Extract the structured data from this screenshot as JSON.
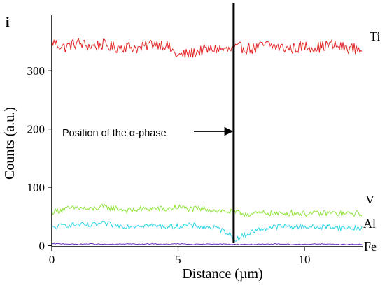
{
  "chart_data": {
    "type": "line",
    "panel_label": "i",
    "title": "",
    "xlabel": "Distance (µm)",
    "ylabel": "Counts (a.u.)",
    "xlim": [
      0,
      12.3
    ],
    "ylim": [
      -2,
      395
    ],
    "x_ticks": [
      0,
      5,
      10
    ],
    "y_ticks": [
      0,
      100,
      200,
      300
    ],
    "x_tick_labels": [
      "0",
      "5",
      "10"
    ],
    "y_tick_labels": [
      "0",
      "100",
      "200",
      "300"
    ],
    "grid": false,
    "annotation": {
      "text": "Position of the α-phase",
      "x_position": 7.2
    },
    "series": [
      {
        "name": "Ti",
        "color": "#e32626",
        "x": [
          0,
          0.5,
          1,
          1.5,
          2,
          2.5,
          3,
          3.5,
          4,
          4.5,
          5,
          5.5,
          6,
          6.5,
          7,
          7.5,
          8,
          8.5,
          9,
          9.5,
          10,
          10.5,
          11,
          11.5,
          12
        ],
        "values": [
          350,
          340,
          348,
          342,
          345,
          340,
          342,
          338,
          348,
          345,
          325,
          330,
          335,
          338,
          335,
          340,
          338,
          345,
          340,
          338,
          342,
          340,
          345,
          340,
          338
        ]
      },
      {
        "name": "V",
        "color": "#8fe33a",
        "x": [
          0,
          0.5,
          1,
          1.5,
          2,
          2.5,
          3,
          3.5,
          4,
          4.5,
          5,
          5.5,
          6,
          6.5,
          7,
          7.5,
          8,
          8.5,
          9,
          9.5,
          10,
          10.5,
          11,
          11.5,
          12
        ],
        "values": [
          58,
          62,
          65,
          62,
          66,
          64,
          60,
          62,
          64,
          62,
          66,
          62,
          63,
          60,
          58,
          55,
          54,
          56,
          54,
          56,
          55,
          55,
          56,
          54,
          55
        ]
      },
      {
        "name": "Al",
        "color": "#29d6e8",
        "x": [
          0,
          0.5,
          1,
          1.5,
          2,
          2.5,
          3,
          3.5,
          4,
          4.5,
          5,
          5.5,
          6,
          6.5,
          7,
          7.2,
          7.5,
          8,
          8.5,
          9,
          9.5,
          10,
          10.5,
          11,
          11.5,
          12
        ],
        "values": [
          30,
          35,
          36,
          34,
          38,
          35,
          33,
          35,
          34,
          32,
          33,
          35,
          32,
          30,
          22,
          10,
          15,
          25,
          30,
          33,
          32,
          33,
          31,
          33,
          30,
          30
        ]
      },
      {
        "name": "Fe",
        "color": "#6a2fbf",
        "x": [
          0,
          0.5,
          1,
          1.5,
          2,
          2.5,
          3,
          3.5,
          4,
          4.5,
          5,
          5.5,
          6,
          6.5,
          7,
          7.5,
          8,
          8.5,
          9,
          9.5,
          10,
          10.5,
          11,
          11.5,
          12
        ],
        "values": [
          3,
          3,
          2,
          3,
          2,
          2,
          3,
          2,
          3,
          2,
          3,
          2,
          2,
          3,
          2,
          2,
          2,
          2,
          3,
          2,
          2,
          3,
          2,
          2,
          2
        ]
      }
    ]
  }
}
